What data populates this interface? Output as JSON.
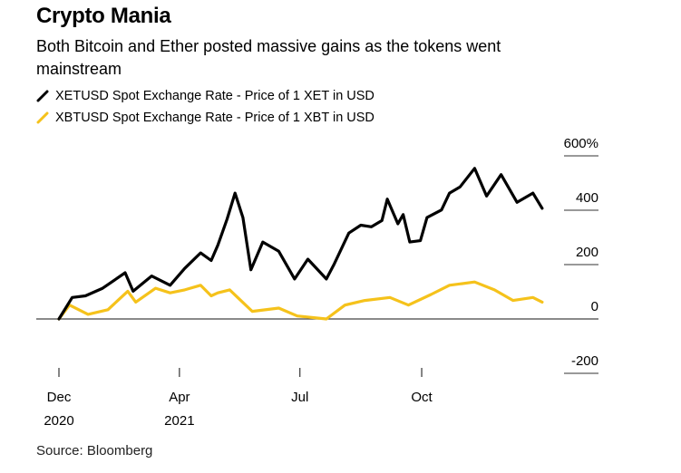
{
  "title": "Crypto Mania",
  "subtitle": "Both Bitcoin and Ether posted massive gains as the tokens went mainstream",
  "source": "Source: Bloomberg",
  "chart_data": {
    "type": "line",
    "title": "Crypto Mania",
    "subtitle": "Both Bitcoin and Ether posted massive gains as the tokens went mainstream",
    "ylabel": "",
    "xlabel": "",
    "unit": "%",
    "ylim": [
      -200,
      600
    ],
    "yticks": [
      600,
      400,
      200,
      0,
      -200
    ],
    "ytick_labels": [
      "600%",
      "400",
      "200",
      "0",
      "-200"
    ],
    "xticks": [
      {
        "date": "2020-12-31",
        "label": "Dec",
        "sublabel": "2020"
      },
      {
        "date": "2021-04-01",
        "label": "Apr",
        "sublabel": "2021"
      },
      {
        "date": "2021-07-01",
        "label": "Jul",
        "sublabel": ""
      },
      {
        "date": "2021-10-01",
        "label": "Oct",
        "sublabel": ""
      }
    ],
    "legend_position": "top-left",
    "grid": false,
    "series": [
      {
        "name": "XETUSD Spot Exchange Rate - Price of 1 XET in USD",
        "color": "#000000",
        "points": [
          [
            "2020-12-31",
            0
          ],
          [
            "2021-01-10",
            79
          ],
          [
            "2021-01-20",
            85
          ],
          [
            "2021-02-02",
            113
          ],
          [
            "2021-02-19",
            170
          ],
          [
            "2021-02-25",
            102
          ],
          [
            "2021-03-11",
            158
          ],
          [
            "2021-03-25",
            124
          ],
          [
            "2021-04-05",
            186
          ],
          [
            "2021-04-17",
            243
          ],
          [
            "2021-04-25",
            215
          ],
          [
            "2021-04-30",
            271
          ],
          [
            "2021-05-07",
            367
          ],
          [
            "2021-05-13",
            463
          ],
          [
            "2021-05-19",
            373
          ],
          [
            "2021-05-25",
            181
          ],
          [
            "2021-06-03",
            283
          ],
          [
            "2021-06-15",
            249
          ],
          [
            "2021-06-27",
            147
          ],
          [
            "2021-07-07",
            220
          ],
          [
            "2021-07-21",
            147
          ],
          [
            "2021-07-27",
            203
          ],
          [
            "2021-08-07",
            316
          ],
          [
            "2021-08-16",
            345
          ],
          [
            "2021-08-24",
            339
          ],
          [
            "2021-09-01",
            362
          ],
          [
            "2021-09-05",
            441
          ],
          [
            "2021-09-13",
            350
          ],
          [
            "2021-09-17",
            384
          ],
          [
            "2021-09-22",
            283
          ],
          [
            "2021-09-30",
            288
          ],
          [
            "2021-10-05",
            373
          ],
          [
            "2021-10-16",
            401
          ],
          [
            "2021-10-22",
            463
          ],
          [
            "2021-10-30",
            486
          ],
          [
            "2021-11-10",
            554
          ],
          [
            "2021-11-19",
            452
          ],
          [
            "2021-11-30",
            531
          ],
          [
            "2021-12-12",
            429
          ],
          [
            "2021-12-24",
            463
          ],
          [
            "2021-12-31",
            407
          ]
        ]
      },
      {
        "name": "XBTUSD Spot Exchange Rate - Price of 1 XBT in USD",
        "color": "#f5c21b",
        "points": [
          [
            "2020-12-31",
            0
          ],
          [
            "2021-01-08",
            51
          ],
          [
            "2021-01-22",
            17
          ],
          [
            "2021-02-06",
            34
          ],
          [
            "2021-02-21",
            102
          ],
          [
            "2021-02-27",
            62
          ],
          [
            "2021-03-14",
            113
          ],
          [
            "2021-03-25",
            96
          ],
          [
            "2021-04-05",
            107
          ],
          [
            "2021-04-17",
            124
          ],
          [
            "2021-04-25",
            85
          ],
          [
            "2021-04-30",
            96
          ],
          [
            "2021-05-09",
            107
          ],
          [
            "2021-05-15",
            79
          ],
          [
            "2021-05-26",
            28
          ],
          [
            "2021-06-15",
            40
          ],
          [
            "2021-06-29",
            11
          ],
          [
            "2021-07-21",
            0
          ],
          [
            "2021-08-04",
            51
          ],
          [
            "2021-08-19",
            68
          ],
          [
            "2021-09-07",
            79
          ],
          [
            "2021-09-21",
            51
          ],
          [
            "2021-10-08",
            90
          ],
          [
            "2021-10-22",
            124
          ],
          [
            "2021-11-10",
            136
          ],
          [
            "2021-11-25",
            107
          ],
          [
            "2021-12-09",
            68
          ],
          [
            "2021-12-24",
            79
          ],
          [
            "2021-12-31",
            62
          ]
        ]
      }
    ]
  }
}
